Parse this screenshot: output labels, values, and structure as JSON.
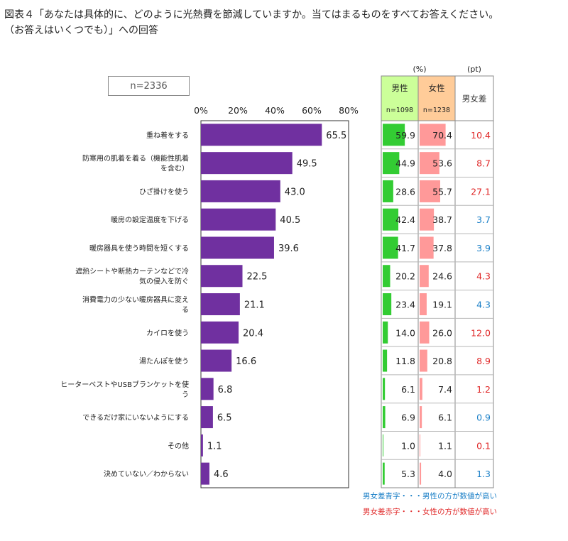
{
  "title_line1": "図表４「あなたは具体的に、どのように光熱費を節減していますか。当てはまるものをすべてお答えください。",
  "title_line2": "（お答えはいくつでも）」への回答",
  "sample_label": "n=2336",
  "chart_data": {
    "type": "bar",
    "orientation": "horizontal",
    "xlim": [
      0,
      80
    ],
    "ticks": [
      "0%",
      "20%",
      "40%",
      "60%",
      "80%"
    ],
    "bar_color": "#7030a0",
    "categories": [
      [
        "重ね着をする"
      ],
      [
        "防寒用の肌着を着る（機能性肌着",
        "を含む）"
      ],
      [
        "ひざ掛けを使う"
      ],
      [
        "暖房の設定温度を下げる"
      ],
      [
        "暖房器具を使う時間を短くする"
      ],
      [
        "遮熱シートや断熱カーテンなどで冷",
        "気の侵入を防ぐ"
      ],
      [
        "消費電力の少ない暖房器具に変え",
        "る"
      ],
      [
        "カイロを使う"
      ],
      [
        "湯たんぽを使う"
      ],
      [
        "ヒーターベストやUSBブランケットを使",
        "う"
      ],
      [
        "できるだけ家にいないようにする"
      ],
      [
        "その他"
      ],
      [
        "決めていない／わからない"
      ]
    ],
    "values": [
      65.5,
      49.5,
      43.0,
      40.5,
      39.6,
      22.5,
      21.1,
      20.4,
      16.6,
      6.8,
      6.5,
      1.1,
      4.6
    ]
  },
  "side_table": {
    "unit_pct": "(%)",
    "unit_pt": "(pt)",
    "male_header": "男性",
    "male_n": "n=1098",
    "female_header": "女性",
    "female_n": "n=1238",
    "diff_header": "男女差",
    "male_color": "#33cc33",
    "female_color": "#ff9999",
    "male_header_bg": "#ccff99",
    "female_header_bg": "#ffcc99",
    "male_values": [
      59.9,
      44.9,
      28.6,
      42.4,
      41.7,
      20.2,
      23.4,
      14.0,
      11.8,
      6.1,
      6.9,
      1.0,
      5.3
    ],
    "female_values": [
      70.4,
      53.6,
      55.7,
      38.7,
      37.8,
      24.6,
      19.1,
      26.0,
      20.8,
      7.4,
      6.1,
      1.1,
      4.0
    ],
    "diffs": [
      10.4,
      8.7,
      27.1,
      3.7,
      3.9,
      4.3,
      4.3,
      12.0,
      8.9,
      1.2,
      0.9,
      0.1,
      1.3
    ],
    "diff_sides": [
      "female",
      "female",
      "female",
      "male",
      "male",
      "female",
      "male",
      "female",
      "female",
      "female",
      "male",
      "female",
      "male"
    ]
  },
  "notes": {
    "blue": "男女差青字・・・男性の方が数値が高い",
    "red": "男女差赤字・・・女性の方が数値が高い",
    "blue_color": "#1a7fc7",
    "red_color": "#e02828"
  }
}
